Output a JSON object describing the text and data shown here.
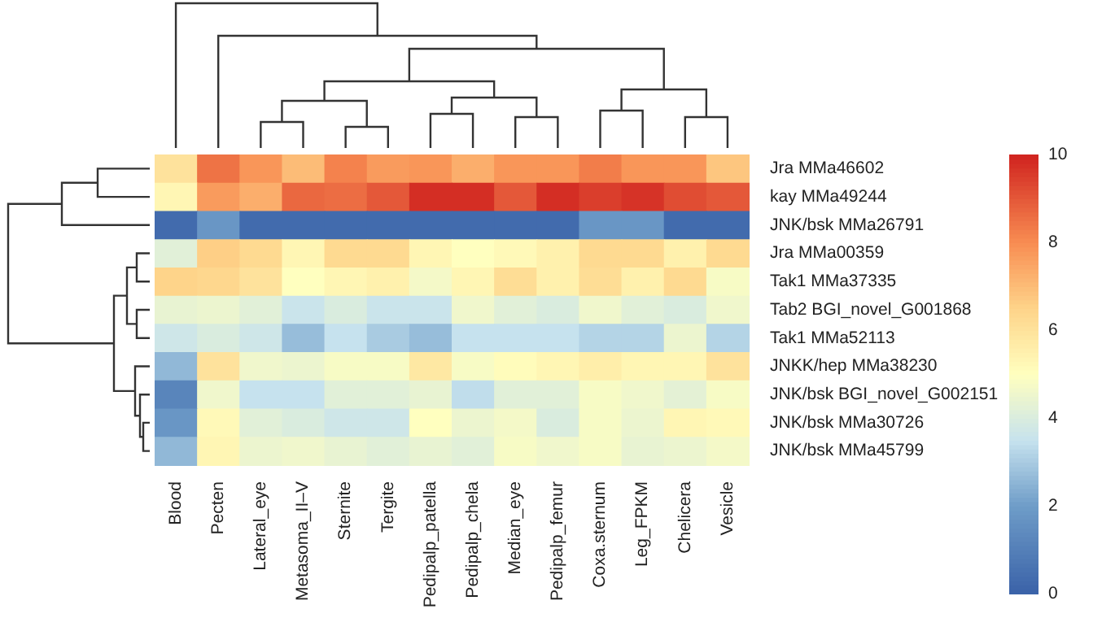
{
  "chart_data": {
    "type": "heatmap",
    "categories": [
      "Blood",
      "Pecten",
      "Lateral_eye",
      "Metasoma_II–V",
      "Sternite",
      "Tergite",
      "Pedipalp_patella",
      "Pedipalp_chela",
      "Median_eye",
      "Pedipalp_femur",
      "Coxa.sternum",
      "Leg_FPKM",
      "Chelicera",
      "Vesicle"
    ],
    "y_categories": [
      "Jra MMa46602",
      "kay MMa49244",
      "JNK/bsk MMa26791",
      "Jra MMa00359",
      "Tak1 MMa37335",
      "Tab2 BGI_novel_G001868",
      "Tak1 MMa52113",
      "JNKK/hep MMa38230",
      "JNK/bsk BGI_novel_G002151",
      "JNK/bsk MMa30726",
      "JNK/bsk MMa45799"
    ],
    "cells": [
      [
        6.0,
        8.5,
        7.8,
        7.0,
        8.2,
        7.7,
        7.8,
        7.3,
        7.8,
        7.8,
        8.3,
        7.8,
        7.8,
        6.8
      ],
      [
        5.3,
        7.7,
        7.3,
        8.7,
        8.6,
        9.0,
        9.8,
        9.8,
        9.0,
        9.8,
        9.5,
        9.7,
        9.2,
        9.0
      ],
      [
        0.3,
        1.8,
        0.3,
        0.3,
        0.3,
        0.3,
        0.3,
        0.3,
        0.3,
        0.3,
        1.8,
        1.8,
        0.3,
        0.3
      ],
      [
        4.2,
        6.6,
        6.3,
        5.3,
        6.3,
        6.3,
        5.3,
        5.0,
        5.2,
        5.5,
        6.3,
        6.3,
        5.5,
        6.3
      ],
      [
        6.5,
        6.4,
        6.0,
        5.0,
        5.3,
        5.5,
        4.7,
        5.3,
        6.2,
        5.5,
        6.2,
        5.5,
        6.3,
        4.8
      ],
      [
        4.4,
        4.5,
        4.2,
        3.6,
        4.0,
        3.6,
        3.6,
        4.6,
        4.2,
        4.0,
        4.6,
        4.2,
        4.0,
        4.6
      ],
      [
        3.7,
        4.0,
        3.7,
        2.7,
        3.5,
        3.0,
        2.7,
        3.5,
        3.5,
        3.5,
        3.2,
        3.2,
        4.5,
        3.2
      ],
      [
        2.6,
        6.0,
        4.6,
        4.5,
        4.8,
        4.8,
        5.8,
        4.8,
        5.1,
        5.3,
        5.6,
        5.3,
        5.3,
        6.0
      ],
      [
        1.2,
        4.6,
        3.5,
        3.5,
        4.2,
        4.2,
        4.4,
        3.4,
        4.2,
        4.2,
        4.8,
        4.6,
        4.3,
        4.8
      ],
      [
        1.8,
        5.2,
        4.2,
        4.0,
        3.7,
        3.7,
        5.0,
        4.5,
        4.7,
        4.0,
        4.8,
        4.5,
        5.3,
        5.2
      ],
      [
        2.6,
        5.3,
        4.5,
        4.6,
        4.4,
        4.2,
        4.4,
        4.2,
        4.8,
        4.6,
        4.8,
        4.4,
        4.5,
        4.7
      ]
    ],
    "clim": [
      0,
      10
    ],
    "cticks": [
      0,
      2,
      4,
      6,
      8,
      10
    ]
  }
}
